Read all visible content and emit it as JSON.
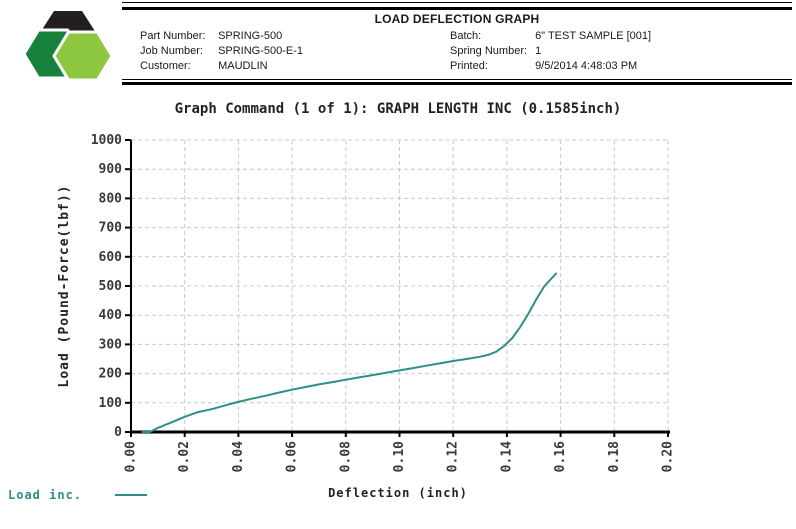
{
  "header": {
    "title": "LOAD DEFLECTION GRAPH",
    "fields_left": [
      {
        "label": "Part Number:",
        "value": "SPRING-500"
      },
      {
        "label": "Job Number:",
        "value": "SPRING-500-E-1"
      },
      {
        "label": "Customer:",
        "value": "MAUDLIN"
      }
    ],
    "fields_right": [
      {
        "label": "Batch:",
        "value": "6\" TEST SAMPLE [001]"
      },
      {
        "label": "Spring Number:",
        "value": "1"
      },
      {
        "label": "Printed:",
        "value": "9/5/2014 4:48:03 PM"
      }
    ]
  },
  "logo": {
    "colors": {
      "black": "#231f20",
      "dark_green": "#17813e",
      "light_green": "#8dc63f"
    }
  },
  "chart_data": {
    "type": "line",
    "title": "Graph Command (1 of 1): GRAPH LENGTH INC (0.1585inch)",
    "xlabel": "Deflection (inch)",
    "ylabel": "Load (Pound-Force(lbf))",
    "xlim": [
      0,
      0.2
    ],
    "ylim": [
      0,
      1000
    ],
    "xtick_labels": [
      "0.00",
      "0.02",
      "0.04",
      "0.06",
      "0.08",
      "0.10",
      "0.12",
      "0.14",
      "0.16",
      "0.18",
      "0.20"
    ],
    "ytick_labels": [
      "0",
      "100",
      "200",
      "300",
      "400",
      "500",
      "600",
      "700",
      "800",
      "900",
      "1000"
    ],
    "grid": {
      "show": true,
      "style": "dashed",
      "color": "#c9c9c9"
    },
    "axis_color": "#000000",
    "legend": {
      "position": "bottom-left",
      "entries": [
        {
          "label": "Load inc.",
          "color": "#2e8f87"
        }
      ]
    },
    "series": [
      {
        "name": "Load inc.",
        "color": "#2e8f87",
        "points": [
          [
            0.004,
            0
          ],
          [
            0.007,
            0
          ],
          [
            0.01,
            14
          ],
          [
            0.015,
            33
          ],
          [
            0.02,
            52
          ],
          [
            0.025,
            68
          ],
          [
            0.03,
            78
          ],
          [
            0.035,
            91
          ],
          [
            0.04,
            103
          ],
          [
            0.045,
            114
          ],
          [
            0.05,
            124
          ],
          [
            0.055,
            135
          ],
          [
            0.06,
            145
          ],
          [
            0.065,
            154
          ],
          [
            0.07,
            163
          ],
          [
            0.075,
            171
          ],
          [
            0.08,
            179
          ],
          [
            0.085,
            187
          ],
          [
            0.09,
            195
          ],
          [
            0.095,
            203
          ],
          [
            0.1,
            211
          ],
          [
            0.105,
            219
          ],
          [
            0.11,
            227
          ],
          [
            0.115,
            235
          ],
          [
            0.12,
            243
          ],
          [
            0.125,
            250
          ],
          [
            0.13,
            258
          ],
          [
            0.133,
            264
          ],
          [
            0.136,
            275
          ],
          [
            0.139,
            295
          ],
          [
            0.142,
            322
          ],
          [
            0.145,
            360
          ],
          [
            0.148,
            405
          ],
          [
            0.151,
            455
          ],
          [
            0.154,
            500
          ],
          [
            0.1585,
            545
          ]
        ]
      }
    ]
  }
}
